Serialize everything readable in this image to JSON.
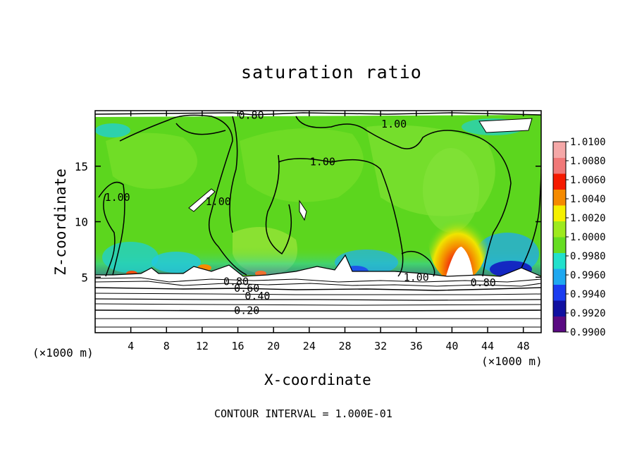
{
  "chart_data": {
    "type": "heatmap",
    "title": "saturation ratio",
    "xlabel": "X-coordinate",
    "ylabel": "Z-coordinate",
    "x_unit": "(×1000 m)",
    "y_unit": "(×1000 m)",
    "xlim": [
      0,
      50
    ],
    "ylim": [
      0,
      20
    ],
    "x_ticks": [
      4,
      8,
      12,
      16,
      20,
      24,
      28,
      32,
      36,
      40,
      44,
      48
    ],
    "y_ticks": [
      5,
      10,
      15
    ],
    "colorbar": {
      "labels": [
        "1.0100",
        "1.0080",
        "1.0060",
        "1.0040",
        "1.0020",
        "1.0000",
        "0.9980",
        "0.9960",
        "0.9940",
        "0.9920",
        "0.9900"
      ],
      "range": [
        0.99,
        1.01
      ],
      "colors": [
        "#5a0a82",
        "#1010a0",
        "#1a3cf0",
        "#1fa8f0",
        "#22e0cc",
        "#66dd22",
        "#9eea1e",
        "#f5f000",
        "#f58a00",
        "#f51a00",
        "#f07878",
        "#f5a8a8"
      ]
    },
    "contour_labels": [
      {
        "text": "0.80",
        "x": 17.5,
        "z": 19.6
      },
      {
        "text": "1.00",
        "x": 33.5,
        "z": 18.8
      },
      {
        "text": "1.00",
        "x": 25.5,
        "z": 15.4
      },
      {
        "text": "1.00",
        "x": 2.5,
        "z": 12.2
      },
      {
        "text": "1.00",
        "x": 13.8,
        "z": 11.8
      },
      {
        "text": "1.00",
        "x": 36.0,
        "z": 5.0
      },
      {
        "text": "0.80",
        "x": 15.8,
        "z": 4.6
      },
      {
        "text": "0.60",
        "x": 17.0,
        "z": 4.0
      },
      {
        "text": "0.40",
        "x": 18.2,
        "z": 3.3
      },
      {
        "text": "0.80",
        "x": 43.5,
        "z": 4.5
      },
      {
        "text": "0.20",
        "x": 17.0,
        "z": 2.0
      }
    ],
    "annotation": "CONTOUR INTERVAL = 1.000E-01"
  }
}
